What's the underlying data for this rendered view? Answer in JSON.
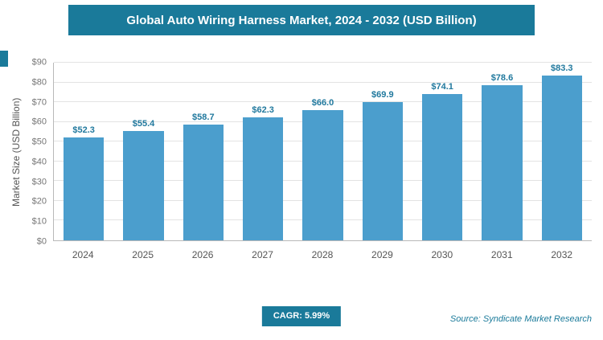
{
  "header": {
    "title": "Global Auto Wiring Harness Market, 2024 - 2032 (USD Billion)"
  },
  "chart_data": {
    "type": "bar",
    "title": "Global Auto Wiring Harness Market, 2024 - 2032 (USD Billion)",
    "categories": [
      "2024",
      "2025",
      "2026",
      "2027",
      "2028",
      "2029",
      "2030",
      "2031",
      "2032"
    ],
    "values": [
      52.3,
      55.4,
      58.7,
      62.3,
      66.0,
      69.9,
      74.1,
      78.6,
      83.3
    ],
    "value_labels": [
      "$52.3",
      "$55.4",
      "$58.7",
      "$62.3",
      "$66.0",
      "$69.9",
      "$74.1",
      "$78.6",
      "$83.3"
    ],
    "xlabel": "",
    "ylabel": "Market Size (USD Billion)",
    "ylim": [
      0,
      90
    ],
    "ytick_step": 10,
    "ytick_labels": [
      "$0",
      "$10",
      "$20",
      "$30",
      "$40",
      "$50",
      "$60",
      "$70",
      "$80",
      "$90"
    ],
    "grid": true,
    "legend": "none"
  },
  "footer": {
    "cagr_label": "CAGR: 5.99%",
    "source": "Source: Syndicate Market Research"
  },
  "theme": {
    "accent": "#1a7a9a",
    "bar": "#4b9ecd",
    "value_label": "#21799e",
    "grid": "#e3e3e3",
    "axis": "#b9b9b9",
    "tick_text": "#757575",
    "xtick_text": "#555555"
  }
}
